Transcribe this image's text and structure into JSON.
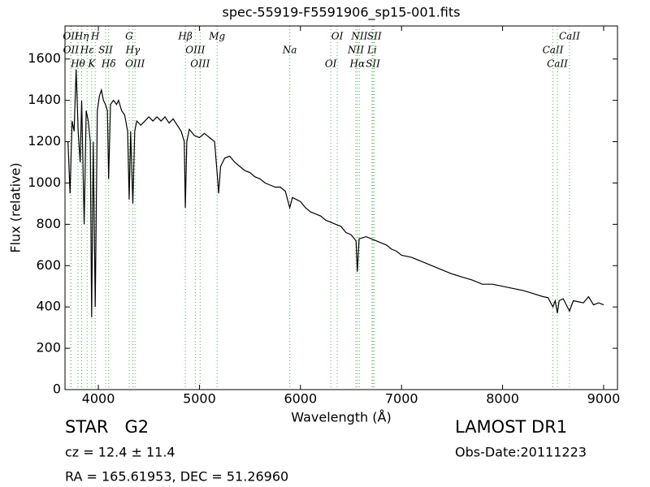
{
  "chart_data": {
    "type": "line",
    "title": "spec-55919-F5591906_sp15-001.fits",
    "xlabel": "Wavelength (Å)",
    "ylabel": "Flux (relative)",
    "xlim": [
      3670,
      9137
    ],
    "ylim": [
      0,
      1760
    ],
    "xticks": [
      4000,
      5000,
      6000,
      7000,
      8000,
      9000
    ],
    "yticks": [
      0,
      200,
      400,
      600,
      800,
      1000,
      1200,
      1400,
      1600
    ],
    "x": [
      3700,
      3720,
      3740,
      3760,
      3780,
      3800,
      3820,
      3835,
      3860,
      3880,
      3900,
      3920,
      3934,
      3950,
      3969,
      3990,
      4010,
      4030,
      4050,
      4070,
      4090,
      4102,
      4120,
      4150,
      4180,
      4200,
      4230,
      4260,
      4290,
      4305,
      4320,
      4341,
      4360,
      4380,
      4420,
      4460,
      4500,
      4540,
      4580,
      4620,
      4660,
      4700,
      4740,
      4780,
      4820,
      4850,
      4861,
      4875,
      4900,
      4950,
      5000,
      5050,
      5100,
      5150,
      5175,
      5190,
      5210,
      5250,
      5300,
      5350,
      5400,
      5450,
      5500,
      5550,
      5600,
      5650,
      5700,
      5750,
      5800,
      5850,
      5894,
      5920,
      6000,
      6050,
      6100,
      6150,
      6200,
      6250,
      6300,
      6350,
      6400,
      6450,
      6500,
      6550,
      6563,
      6580,
      6650,
      6700,
      6750,
      6800,
      6850,
      6900,
      6950,
      7000,
      7100,
      7200,
      7300,
      7400,
      7500,
      7600,
      7700,
      7800,
      7900,
      8000,
      8100,
      8200,
      8300,
      8400,
      8450,
      8498,
      8520,
      8542,
      8560,
      8600,
      8662,
      8700,
      8800,
      8850,
      8900,
      8950,
      9000
    ],
    "series": [
      {
        "name": "flux",
        "color": "#000000",
        "values": [
          1200,
          950,
          1300,
          1250,
          1550,
          1250,
          1100,
          1400,
          800,
          1350,
          1300,
          1200,
          350,
          1200,
          400,
          1350,
          1420,
          1450,
          1400,
          1380,
          1350,
          1020,
          1380,
          1400,
          1380,
          1400,
          1350,
          1330,
          1250,
          920,
          1250,
          900,
          1250,
          1300,
          1280,
          1300,
          1320,
          1300,
          1320,
          1300,
          1320,
          1290,
          1310,
          1280,
          1250,
          1200,
          880,
          1200,
          1260,
          1230,
          1220,
          1240,
          1220,
          1200,
          1050,
          950,
          1080,
          1120,
          1130,
          1100,
          1080,
          1060,
          1050,
          1030,
          1020,
          1000,
          990,
          980,
          980,
          960,
          880,
          930,
          910,
          880,
          860,
          850,
          840,
          820,
          810,
          800,
          790,
          760,
          750,
          720,
          570,
          730,
          740,
          730,
          720,
          710,
          700,
          680,
          670,
          650,
          640,
          620,
          600,
          580,
          560,
          545,
          530,
          510,
          510,
          500,
          490,
          480,
          465,
          450,
          445,
          400,
          430,
          370,
          430,
          440,
          380,
          430,
          420,
          450,
          410,
          420,
          410
        ]
      }
    ],
    "line_color": "#55aa55",
    "lines": [
      {
        "wavelength": 3727,
        "label": "OII"
      },
      {
        "wavelength": 3729,
        "label": "OII"
      },
      {
        "wavelength": 3798,
        "label": "Hθ"
      },
      {
        "wavelength": 3835,
        "label": "Hη"
      },
      {
        "wavelength": 3889,
        "label": "Hε"
      },
      {
        "wavelength": 3934,
        "label": "K"
      },
      {
        "wavelength": 3969,
        "label": "H"
      },
      {
        "wavelength": 4072,
        "label": "SII"
      },
      {
        "wavelength": 4102,
        "label": "Hδ"
      },
      {
        "wavelength": 4305,
        "label": "G"
      },
      {
        "wavelength": 4341,
        "label": "Hγ"
      },
      {
        "wavelength": 4363,
        "label": "OIII"
      },
      {
        "wavelength": 4861,
        "label": "Hβ"
      },
      {
        "wavelength": 4959,
        "label": "OIII"
      },
      {
        "wavelength": 5007,
        "label": "OIII"
      },
      {
        "wavelength": 5175,
        "label": "Mg"
      },
      {
        "wavelength": 5894,
        "label": "Na"
      },
      {
        "wavelength": 6300,
        "label": "OI"
      },
      {
        "wavelength": 6364,
        "label": "OI"
      },
      {
        "wavelength": 6548,
        "label": "NII"
      },
      {
        "wavelength": 6563,
        "label": "Hα"
      },
      {
        "wavelength": 6583,
        "label": "NII"
      },
      {
        "wavelength": 6708,
        "label": "Li"
      },
      {
        "wavelength": 6717,
        "label": "SII"
      },
      {
        "wavelength": 6731,
        "label": "SII"
      },
      {
        "wavelength": 8498,
        "label": "CaII"
      },
      {
        "wavelength": 8542,
        "label": "CaII"
      },
      {
        "wavelength": 8662,
        "label": "CaII"
      }
    ]
  },
  "info": {
    "class": "STAR   G2",
    "cz": "cz = 12.4 ± 11.4",
    "coords": "RA = 165.61953, DEC = 51.26960",
    "survey": "LAMOST DR1",
    "date": "Obs-Date:20111223"
  }
}
